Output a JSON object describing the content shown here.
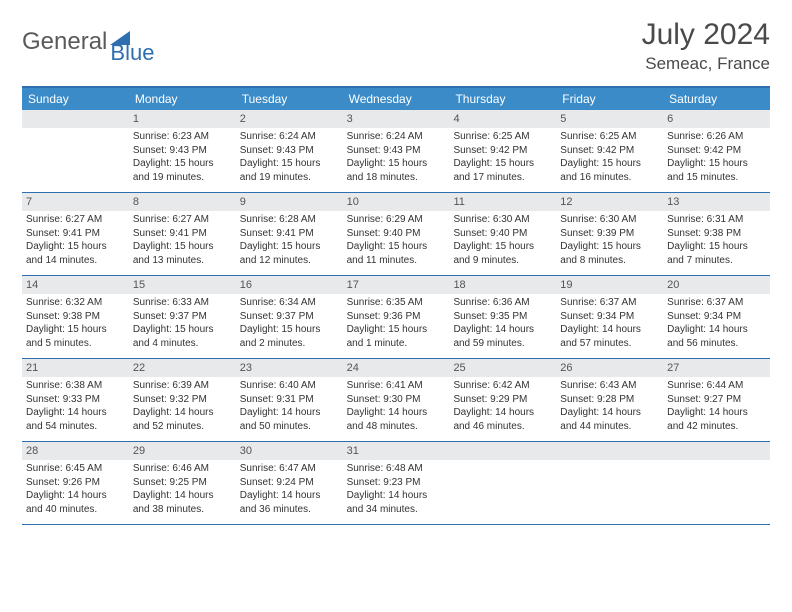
{
  "logo": {
    "part1": "General",
    "part2": "Blue"
  },
  "header": {
    "month": "July 2024",
    "location": "Semeac, France"
  },
  "colors": {
    "header_bar": "#3b8bc8",
    "border": "#2f6fb0",
    "daynum_bg": "#e8e9ea",
    "text": "#333333",
    "logo_gray": "#5a5a5a",
    "logo_blue": "#2f6fb0"
  },
  "weekdays": [
    "Sunday",
    "Monday",
    "Tuesday",
    "Wednesday",
    "Thursday",
    "Friday",
    "Saturday"
  ],
  "weeks": [
    [
      {
        "n": "",
        "sr": "",
        "ss": "",
        "dl": ""
      },
      {
        "n": "1",
        "sr": "Sunrise: 6:23 AM",
        "ss": "Sunset: 9:43 PM",
        "dl": "Daylight: 15 hours and 19 minutes."
      },
      {
        "n": "2",
        "sr": "Sunrise: 6:24 AM",
        "ss": "Sunset: 9:43 PM",
        "dl": "Daylight: 15 hours and 19 minutes."
      },
      {
        "n": "3",
        "sr": "Sunrise: 6:24 AM",
        "ss": "Sunset: 9:43 PM",
        "dl": "Daylight: 15 hours and 18 minutes."
      },
      {
        "n": "4",
        "sr": "Sunrise: 6:25 AM",
        "ss": "Sunset: 9:42 PM",
        "dl": "Daylight: 15 hours and 17 minutes."
      },
      {
        "n": "5",
        "sr": "Sunrise: 6:25 AM",
        "ss": "Sunset: 9:42 PM",
        "dl": "Daylight: 15 hours and 16 minutes."
      },
      {
        "n": "6",
        "sr": "Sunrise: 6:26 AM",
        "ss": "Sunset: 9:42 PM",
        "dl": "Daylight: 15 hours and 15 minutes."
      }
    ],
    [
      {
        "n": "7",
        "sr": "Sunrise: 6:27 AM",
        "ss": "Sunset: 9:41 PM",
        "dl": "Daylight: 15 hours and 14 minutes."
      },
      {
        "n": "8",
        "sr": "Sunrise: 6:27 AM",
        "ss": "Sunset: 9:41 PM",
        "dl": "Daylight: 15 hours and 13 minutes."
      },
      {
        "n": "9",
        "sr": "Sunrise: 6:28 AM",
        "ss": "Sunset: 9:41 PM",
        "dl": "Daylight: 15 hours and 12 minutes."
      },
      {
        "n": "10",
        "sr": "Sunrise: 6:29 AM",
        "ss": "Sunset: 9:40 PM",
        "dl": "Daylight: 15 hours and 11 minutes."
      },
      {
        "n": "11",
        "sr": "Sunrise: 6:30 AM",
        "ss": "Sunset: 9:40 PM",
        "dl": "Daylight: 15 hours and 9 minutes."
      },
      {
        "n": "12",
        "sr": "Sunrise: 6:30 AM",
        "ss": "Sunset: 9:39 PM",
        "dl": "Daylight: 15 hours and 8 minutes."
      },
      {
        "n": "13",
        "sr": "Sunrise: 6:31 AM",
        "ss": "Sunset: 9:38 PM",
        "dl": "Daylight: 15 hours and 7 minutes."
      }
    ],
    [
      {
        "n": "14",
        "sr": "Sunrise: 6:32 AM",
        "ss": "Sunset: 9:38 PM",
        "dl": "Daylight: 15 hours and 5 minutes."
      },
      {
        "n": "15",
        "sr": "Sunrise: 6:33 AM",
        "ss": "Sunset: 9:37 PM",
        "dl": "Daylight: 15 hours and 4 minutes."
      },
      {
        "n": "16",
        "sr": "Sunrise: 6:34 AM",
        "ss": "Sunset: 9:37 PM",
        "dl": "Daylight: 15 hours and 2 minutes."
      },
      {
        "n": "17",
        "sr": "Sunrise: 6:35 AM",
        "ss": "Sunset: 9:36 PM",
        "dl": "Daylight: 15 hours and 1 minute."
      },
      {
        "n": "18",
        "sr": "Sunrise: 6:36 AM",
        "ss": "Sunset: 9:35 PM",
        "dl": "Daylight: 14 hours and 59 minutes."
      },
      {
        "n": "19",
        "sr": "Sunrise: 6:37 AM",
        "ss": "Sunset: 9:34 PM",
        "dl": "Daylight: 14 hours and 57 minutes."
      },
      {
        "n": "20",
        "sr": "Sunrise: 6:37 AM",
        "ss": "Sunset: 9:34 PM",
        "dl": "Daylight: 14 hours and 56 minutes."
      }
    ],
    [
      {
        "n": "21",
        "sr": "Sunrise: 6:38 AM",
        "ss": "Sunset: 9:33 PM",
        "dl": "Daylight: 14 hours and 54 minutes."
      },
      {
        "n": "22",
        "sr": "Sunrise: 6:39 AM",
        "ss": "Sunset: 9:32 PM",
        "dl": "Daylight: 14 hours and 52 minutes."
      },
      {
        "n": "23",
        "sr": "Sunrise: 6:40 AM",
        "ss": "Sunset: 9:31 PM",
        "dl": "Daylight: 14 hours and 50 minutes."
      },
      {
        "n": "24",
        "sr": "Sunrise: 6:41 AM",
        "ss": "Sunset: 9:30 PM",
        "dl": "Daylight: 14 hours and 48 minutes."
      },
      {
        "n": "25",
        "sr": "Sunrise: 6:42 AM",
        "ss": "Sunset: 9:29 PM",
        "dl": "Daylight: 14 hours and 46 minutes."
      },
      {
        "n": "26",
        "sr": "Sunrise: 6:43 AM",
        "ss": "Sunset: 9:28 PM",
        "dl": "Daylight: 14 hours and 44 minutes."
      },
      {
        "n": "27",
        "sr": "Sunrise: 6:44 AM",
        "ss": "Sunset: 9:27 PM",
        "dl": "Daylight: 14 hours and 42 minutes."
      }
    ],
    [
      {
        "n": "28",
        "sr": "Sunrise: 6:45 AM",
        "ss": "Sunset: 9:26 PM",
        "dl": "Daylight: 14 hours and 40 minutes."
      },
      {
        "n": "29",
        "sr": "Sunrise: 6:46 AM",
        "ss": "Sunset: 9:25 PM",
        "dl": "Daylight: 14 hours and 38 minutes."
      },
      {
        "n": "30",
        "sr": "Sunrise: 6:47 AM",
        "ss": "Sunset: 9:24 PM",
        "dl": "Daylight: 14 hours and 36 minutes."
      },
      {
        "n": "31",
        "sr": "Sunrise: 6:48 AM",
        "ss": "Sunset: 9:23 PM",
        "dl": "Daylight: 14 hours and 34 minutes."
      },
      {
        "n": "",
        "sr": "",
        "ss": "",
        "dl": ""
      },
      {
        "n": "",
        "sr": "",
        "ss": "",
        "dl": ""
      },
      {
        "n": "",
        "sr": "",
        "ss": "",
        "dl": ""
      }
    ]
  ]
}
